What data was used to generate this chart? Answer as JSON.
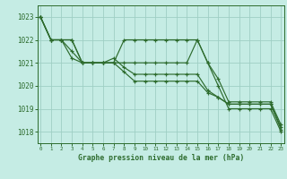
{
  "xlabel": "Graphe pression niveau de la mer (hPa)",
  "bg_color": "#c5ece4",
  "line_color": "#2d6b2d",
  "grid_color": "#9fcfc4",
  "ylim": [
    1017.5,
    1023.5
  ],
  "xlim": [
    -0.3,
    23.3
  ],
  "yticks": [
    1018,
    1019,
    1020,
    1021,
    1022,
    1023
  ],
  "xticks": [
    0,
    1,
    2,
    3,
    4,
    5,
    6,
    7,
    8,
    9,
    10,
    11,
    12,
    13,
    14,
    15,
    16,
    17,
    18,
    19,
    20,
    21,
    22,
    23
  ],
  "series": [
    [
      1023,
      1022,
      1022,
      1022,
      1021,
      1021,
      1021,
      1021,
      1022,
      1022,
      1022,
      1022,
      1022,
      1022,
      1022,
      1022,
      1021,
      1020,
      1019,
      1019,
      1019,
      1019,
      1019,
      1018.0
    ],
    [
      1023,
      1022,
      1022,
      1022,
      1021,
      1021,
      1021,
      1021,
      1021,
      1021,
      1021,
      1021,
      1021,
      1021,
      1021,
      1022,
      1021,
      1020.3,
      1019.3,
      1019.3,
      1019.3,
      1019.3,
      1019.3,
      1018.3
    ],
    [
      1023,
      1022,
      1022,
      1021.2,
      1021,
      1021,
      1021,
      1021.2,
      1020.8,
      1020.5,
      1020.5,
      1020.5,
      1020.5,
      1020.5,
      1020.5,
      1020.5,
      1019.8,
      1019.5,
      1019.2,
      1019.2,
      1019.2,
      1019.2,
      1019.2,
      1018.2
    ],
    [
      1023,
      1022,
      1022,
      1021.5,
      1021,
      1021,
      1021,
      1021,
      1020.6,
      1020.2,
      1020.2,
      1020.2,
      1020.2,
      1020.2,
      1020.2,
      1020.2,
      1019.7,
      1019.5,
      1019.2,
      1019.2,
      1019.2,
      1019.2,
      1019.2,
      1018.1
    ]
  ]
}
